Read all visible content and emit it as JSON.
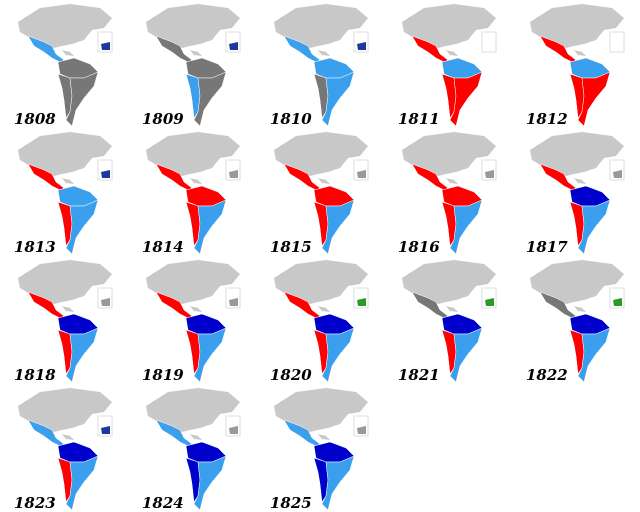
{
  "maps": [
    {
      "year": "1808",
      "mexico": "#3aa0ee",
      "north": "#777777",
      "west": "#777777",
      "south": "#777777",
      "iberia": "#1a3aa0"
    },
    {
      "year": "1809",
      "mexico": "#777777",
      "north": "#777777",
      "west": "#3aa0ee",
      "south": "#777777",
      "iberia": "#1a3aa0"
    },
    {
      "year": "1810",
      "mexico": "#3aa0ee",
      "north": "#3aa0ee",
      "west": "#777777",
      "south": "#3aa0ee",
      "iberia": "#1a3aa0"
    },
    {
      "year": "1811",
      "mexico": "#ff0000",
      "north": "#3aa0ee",
      "west": "#ff0000",
      "south": "#ff0000",
      "iberia": "#ffffff"
    },
    {
      "year": "1812",
      "mexico": "#ff0000",
      "north": "#3aa0ee",
      "west": "#ff0000",
      "south": "#ff0000",
      "iberia": "#ffffff"
    },
    {
      "year": "1813",
      "mexico": "#ff0000",
      "north": "#3aa0ee",
      "west": "#ff0000",
      "south": "#3aa0ee",
      "iberia": "#1a3aa0"
    },
    {
      "year": "1814",
      "mexico": "#ff0000",
      "north": "#ff0000",
      "west": "#ff0000",
      "south": "#3aa0ee",
      "iberia": "#999999"
    },
    {
      "year": "1815",
      "mexico": "#ff0000",
      "north": "#ff0000",
      "west": "#ff0000",
      "south": "#3aa0ee",
      "iberia": "#999999"
    },
    {
      "year": "1816",
      "mexico": "#ff0000",
      "north": "#ff0000",
      "west": "#ff0000",
      "south": "#3aa0ee",
      "iberia": "#999999"
    },
    {
      "year": "1817",
      "mexico": "#ff0000",
      "north": "#0000cc",
      "west": "#ff0000",
      "south": "#3aa0ee",
      "iberia": "#999999"
    },
    {
      "year": "1818",
      "mexico": "#ff0000",
      "north": "#0000cc",
      "west": "#ff0000",
      "south": "#3aa0ee",
      "iberia": "#999999"
    },
    {
      "year": "1819",
      "mexico": "#ff0000",
      "north": "#0000cc",
      "west": "#ff0000",
      "south": "#3aa0ee",
      "iberia": "#999999"
    },
    {
      "year": "1820",
      "mexico": "#ff0000",
      "north": "#0000cc",
      "west": "#ff0000",
      "south": "#3aa0ee",
      "iberia": "#2a9a2a"
    },
    {
      "year": "1821",
      "mexico": "#777777",
      "north": "#0000cc",
      "west": "#ff0000",
      "south": "#3aa0ee",
      "iberia": "#2a9a2a"
    },
    {
      "year": "1822",
      "mexico": "#777777",
      "north": "#0000cc",
      "west": "#ff0000",
      "south": "#3aa0ee",
      "iberia": "#2a9a2a"
    },
    {
      "year": "1823",
      "mexico": "#3aa0ee",
      "north": "#0000cc",
      "west": "#ff0000",
      "south": "#3aa0ee",
      "iberia": "#1a3aa0"
    },
    {
      "year": "1824",
      "mexico": "#3aa0ee",
      "north": "#0000cc",
      "west": "#0000cc",
      "south": "#3aa0ee",
      "iberia": "#999999"
    },
    {
      "year": "1825",
      "mexico": "#3aa0ee",
      "north": "#0000cc",
      "west": "#0000cc",
      "south": "#3aa0ee",
      "iberia": "#999999"
    }
  ]
}
